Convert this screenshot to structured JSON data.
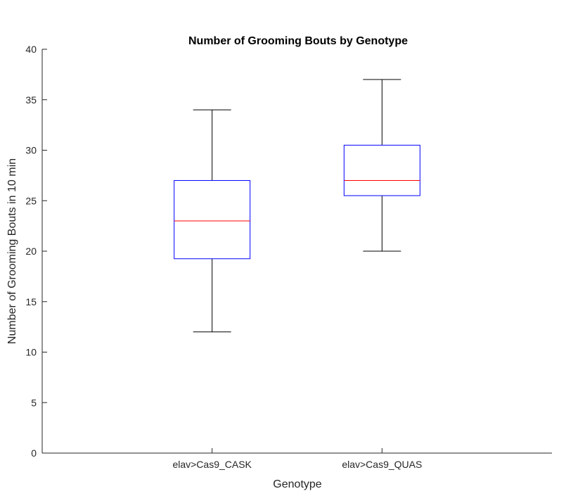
{
  "chart_data": {
    "type": "box",
    "title": "Number of Grooming Bouts by Genotype",
    "xlabel": "Genotype",
    "ylabel": "Number of Grooming Bouts in 10 min",
    "ylim": [
      0,
      40
    ],
    "yticks": [
      0,
      5,
      10,
      15,
      20,
      25,
      30,
      35,
      40
    ],
    "categories": [
      "elav>Cas9_CASK",
      "elav>Cas9_QUAS"
    ],
    "boxes": [
      {
        "category": "elav>Cas9_CASK",
        "min": 12,
        "q1": 19.25,
        "median": 23,
        "q3": 27,
        "max": 34
      },
      {
        "category": "elav>Cas9_QUAS",
        "min": 20,
        "q1": 25.5,
        "median": 27,
        "q3": 30.5,
        "max": 37
      }
    ],
    "grid": false,
    "colors": {
      "box": "#0000ff",
      "median": "#ff0000",
      "whisker": "#000000",
      "axis": "#262626"
    }
  }
}
